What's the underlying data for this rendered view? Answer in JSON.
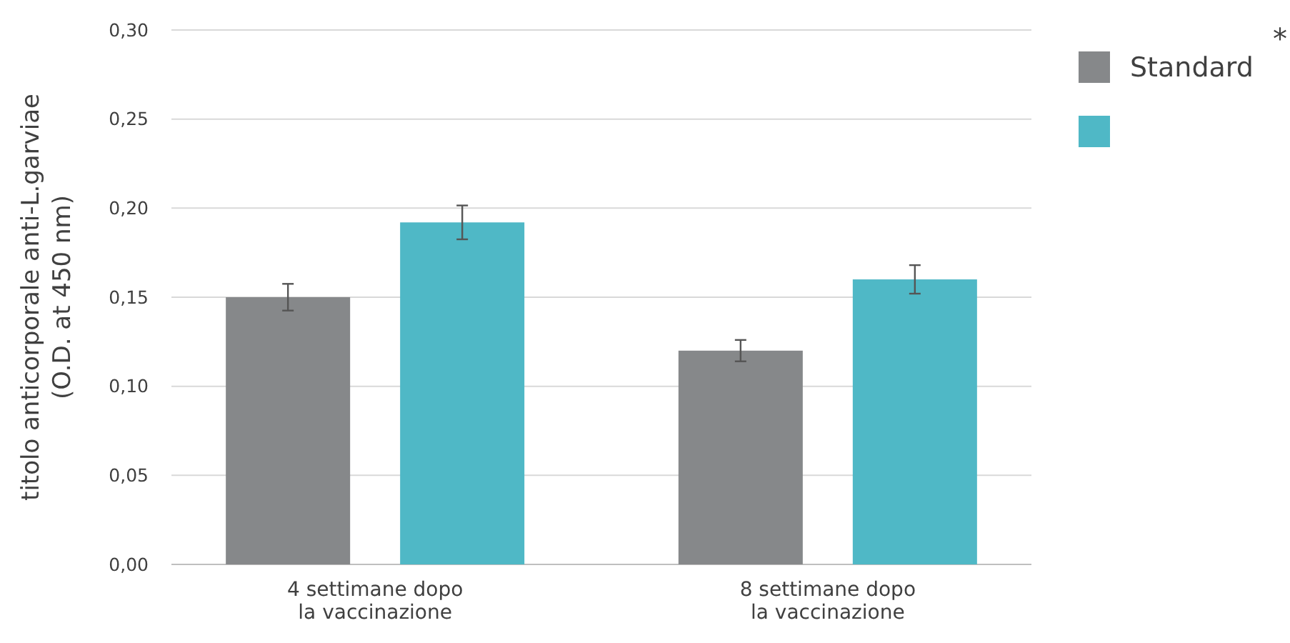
{
  "chart_data": {
    "type": "bar",
    "ylabel": "titolo anticorporale anti-L.garviae\n(O.D. at 450 nm)",
    "categories": [
      "4 settimane dopo\nla vaccinazione",
      "8 settimane dopo\nla vaccinazione"
    ],
    "series": [
      {
        "name": "Standard",
        "color": "#86888a",
        "values": [
          0.15,
          0.12
        ],
        "errors": [
          0.0075,
          0.006
        ]
      },
      {
        "color": "#4fb8c6",
        "values": [
          0.192,
          0.16
        ],
        "errors": [
          0.0095,
          0.008
        ]
      }
    ],
    "ylim": [
      0,
      0.3
    ],
    "yticks": [
      {
        "value": 0,
        "label": "0,00"
      },
      {
        "value": 0.05,
        "label": "0,05"
      },
      {
        "value": 0.1,
        "label": "0,10"
      },
      {
        "value": 0.15,
        "label": "0,15"
      },
      {
        "value": 0.2,
        "label": "0,20"
      },
      {
        "value": 0.25,
        "label": "0,25"
      },
      {
        "value": 0.3,
        "label": "0,30"
      }
    ],
    "grid": "y",
    "legend": "top right",
    "annotations": [
      "*"
    ]
  }
}
